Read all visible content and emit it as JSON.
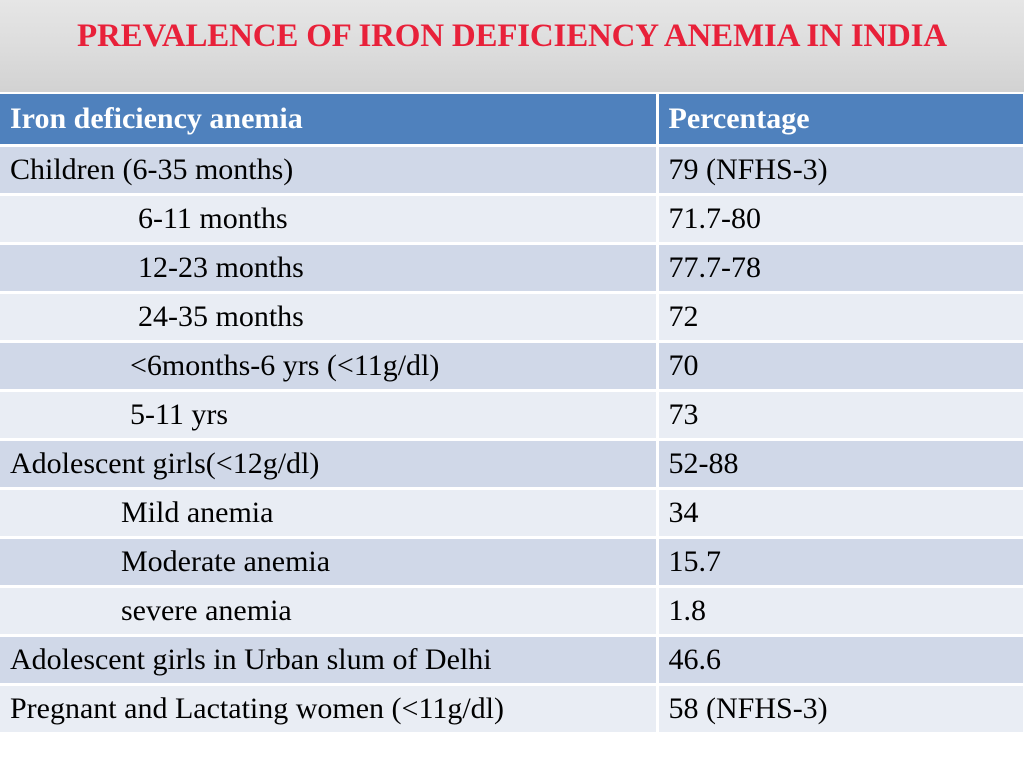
{
  "slide": {
    "title": "PREVALENCE OF IRON DEFICIENCY ANEMIA IN INDIA"
  },
  "table": {
    "headers": [
      "Iron deficiency anemia",
      "Percentage"
    ],
    "rows": [
      {
        "category": "Children (6-35 months)",
        "percentage": "79  (NFHS-3)"
      },
      {
        "category": "6-11 months",
        "percentage": "71.7-80"
      },
      {
        "category": "12-23 months",
        "percentage": "77.7-78"
      },
      {
        "category": "24-35 months",
        "percentage": "72"
      },
      {
        "category": "<6months-6 yrs (<11g/dl)",
        "percentage": "70"
      },
      {
        "category": "5-11 yrs",
        "percentage": "73"
      },
      {
        "category": "Adolescent girls(<12g/dl)",
        "percentage": "52-88"
      },
      {
        "category": "Mild anemia",
        "percentage": "34"
      },
      {
        "category": "Moderate anemia",
        "percentage": "15.7"
      },
      {
        "category": "severe anemia",
        "percentage": "1.8"
      },
      {
        "category": "Adolescent girls in Urban slum of Delhi",
        "percentage": "46.6"
      },
      {
        "category": "Pregnant and Lactating women (<11g/dl)",
        "percentage": "58 (NFHS-3)"
      }
    ]
  },
  "colors": {
    "title": "#e8213a",
    "header_bg": "#4f81bd",
    "row_odd": "#d0d8e8",
    "row_even": "#e9edf4"
  }
}
